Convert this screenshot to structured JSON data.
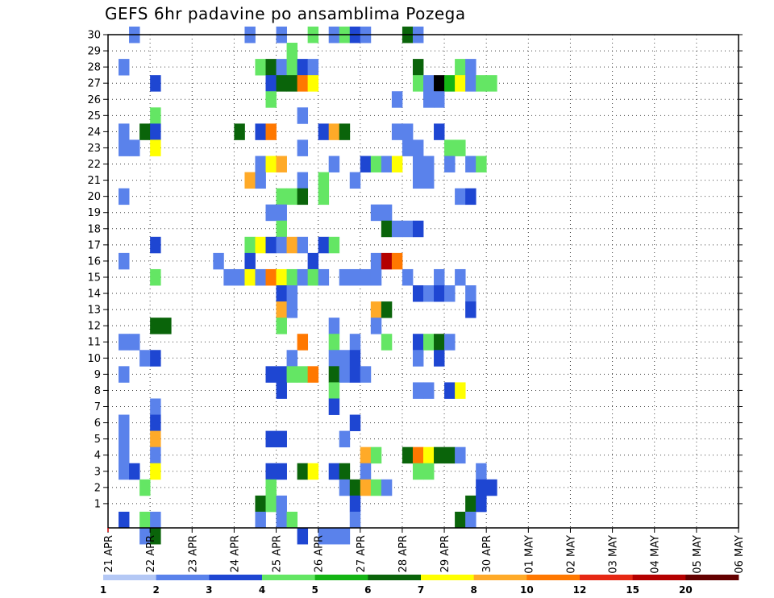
{
  "chart_data": {
    "type": "heatmap",
    "title": "GEFS 6hr padavine po ansamblima Pozega",
    "xlabel": "",
    "ylabel": "",
    "y_ticks": [
      1,
      2,
      3,
      4,
      5,
      6,
      7,
      8,
      9,
      10,
      11,
      12,
      13,
      14,
      15,
      16,
      17,
      18,
      19,
      20,
      21,
      22,
      23,
      24,
      25,
      26,
      27,
      28,
      29,
      30
    ],
    "x_ticks": [
      "21 APR",
      "22 APR",
      "23 APR",
      "24 APR",
      "25 APR",
      "26 APR",
      "27 APR",
      "28 APR",
      "29 APR",
      "30 APR",
      "01 MAY",
      "02 MAY",
      "03 MAY",
      "04 MAY",
      "05 MAY",
      "06 MAY"
    ],
    "x_steps_per_day": 4,
    "x_steps_total": 60,
    "grid": true,
    "legend": {
      "placement": "bottom",
      "labels": [
        "1",
        "2",
        "3",
        "4",
        "5",
        "6",
        "7",
        "8",
        "10",
        "12",
        "15",
        "20"
      ],
      "colors": [
        "#b4c8f5",
        "#5a82eb",
        "#1e46d2",
        "#64e664",
        "#14b414",
        "#0a640a",
        "#ffff00",
        "#ffaa28",
        "#ff7800",
        "#e62814",
        "#b40000",
        "#640000"
      ]
    },
    "cells": [
      [
        2,
        30,
        1
      ],
      [
        13,
        30,
        1
      ],
      [
        16,
        30,
        1
      ],
      [
        19,
        30,
        3
      ],
      [
        21,
        30,
        1
      ],
      [
        22,
        30,
        3
      ],
      [
        23,
        30,
        2
      ],
      [
        24,
        30,
        1
      ],
      [
        28,
        30,
        5
      ],
      [
        29,
        30,
        1
      ],
      [
        17,
        29,
        3
      ],
      [
        1,
        28,
        1
      ],
      [
        14,
        28,
        3
      ],
      [
        15,
        28,
        5
      ],
      [
        16,
        28,
        1
      ],
      [
        17,
        28,
        3
      ],
      [
        18,
        28,
        2
      ],
      [
        19,
        28,
        1
      ],
      [
        29,
        28,
        5
      ],
      [
        33,
        28,
        3
      ],
      [
        34,
        28,
        1
      ],
      [
        4,
        27,
        2
      ],
      [
        15,
        27,
        2
      ],
      [
        16,
        27,
        5
      ],
      [
        17,
        27,
        5
      ],
      [
        18,
        27,
        8
      ],
      [
        19,
        27,
        6
      ],
      [
        29,
        27,
        3
      ],
      [
        30,
        27,
        1
      ],
      [
        31,
        27,
        12
      ],
      [
        32,
        27,
        4
      ],
      [
        33,
        27,
        6
      ],
      [
        34,
        27,
        1
      ],
      [
        35,
        27,
        3
      ],
      [
        36,
        27,
        3
      ],
      [
        15,
        26,
        3
      ],
      [
        27,
        26,
        1
      ],
      [
        30,
        26,
        1
      ],
      [
        31,
        26,
        1
      ],
      [
        4,
        25,
        3
      ],
      [
        18,
        25,
        1
      ],
      [
        1,
        24,
        1
      ],
      [
        3,
        24,
        5
      ],
      [
        4,
        24,
        2
      ],
      [
        12,
        24,
        5
      ],
      [
        14,
        24,
        2
      ],
      [
        15,
        24,
        8
      ],
      [
        20,
        24,
        2
      ],
      [
        21,
        24,
        7
      ],
      [
        22,
        24,
        5
      ],
      [
        27,
        24,
        1
      ],
      [
        28,
        24,
        1
      ],
      [
        31,
        24,
        2
      ],
      [
        1,
        23,
        1
      ],
      [
        2,
        23,
        1
      ],
      [
        4,
        23,
        6
      ],
      [
        18,
        23,
        1
      ],
      [
        28,
        23,
        1
      ],
      [
        29,
        23,
        1
      ],
      [
        32,
        23,
        3
      ],
      [
        33,
        23,
        3
      ],
      [
        14,
        22,
        1
      ],
      [
        15,
        22,
        6
      ],
      [
        16,
        22,
        7
      ],
      [
        21,
        22,
        1
      ],
      [
        24,
        22,
        2
      ],
      [
        25,
        22,
        3
      ],
      [
        26,
        22,
        1
      ],
      [
        27,
        22,
        6
      ],
      [
        29,
        22,
        1
      ],
      [
        30,
        22,
        1
      ],
      [
        32,
        22,
        1
      ],
      [
        34,
        22,
        1
      ],
      [
        35,
        22,
        3
      ],
      [
        13,
        21,
        7
      ],
      [
        14,
        21,
        1
      ],
      [
        18,
        21,
        1
      ],
      [
        20,
        21,
        3
      ],
      [
        23,
        21,
        1
      ],
      [
        29,
        21,
        1
      ],
      [
        30,
        21,
        1
      ],
      [
        1,
        20,
        1
      ],
      [
        16,
        20,
        3
      ],
      [
        17,
        20,
        3
      ],
      [
        18,
        20,
        5
      ],
      [
        20,
        20,
        3
      ],
      [
        33,
        20,
        1
      ],
      [
        34,
        20,
        2
      ],
      [
        15,
        19,
        1
      ],
      [
        16,
        19,
        1
      ],
      [
        25,
        19,
        1
      ],
      [
        26,
        19,
        1
      ],
      [
        16,
        18,
        3
      ],
      [
        26,
        18,
        5
      ],
      [
        27,
        18,
        1
      ],
      [
        28,
        18,
        1
      ],
      [
        29,
        18,
        2
      ],
      [
        4,
        17,
        2
      ],
      [
        13,
        17,
        3
      ],
      [
        14,
        17,
        6
      ],
      [
        15,
        17,
        2
      ],
      [
        16,
        17,
        1
      ],
      [
        17,
        17,
        7
      ],
      [
        18,
        17,
        1
      ],
      [
        20,
        17,
        2
      ],
      [
        21,
        17,
        3
      ],
      [
        1,
        16,
        1
      ],
      [
        10,
        16,
        1
      ],
      [
        13,
        16,
        2
      ],
      [
        19,
        16,
        2
      ],
      [
        25,
        16,
        1
      ],
      [
        26,
        16,
        10
      ],
      [
        27,
        16,
        8
      ],
      [
        4,
        15,
        3
      ],
      [
        11,
        15,
        1
      ],
      [
        12,
        15,
        1
      ],
      [
        13,
        15,
        6
      ],
      [
        14,
        15,
        1
      ],
      [
        15,
        15,
        8
      ],
      [
        16,
        15,
        6
      ],
      [
        17,
        15,
        3
      ],
      [
        18,
        15,
        1
      ],
      [
        19,
        15,
        3
      ],
      [
        20,
        15,
        1
      ],
      [
        22,
        15,
        1
      ],
      [
        23,
        15,
        1
      ],
      [
        24,
        15,
        1
      ],
      [
        25,
        15,
        1
      ],
      [
        28,
        15,
        1
      ],
      [
        31,
        15,
        1
      ],
      [
        33,
        15,
        1
      ],
      [
        16,
        14,
        2
      ],
      [
        17,
        14,
        1
      ],
      [
        29,
        14,
        2
      ],
      [
        30,
        14,
        1
      ],
      [
        31,
        14,
        2
      ],
      [
        32,
        14,
        1
      ],
      [
        34,
        14,
        1
      ],
      [
        16,
        13,
        7
      ],
      [
        17,
        13,
        1
      ],
      [
        25,
        13,
        7
      ],
      [
        26,
        13,
        5
      ],
      [
        34,
        13,
        2
      ],
      [
        4,
        12,
        5
      ],
      [
        5,
        12,
        5
      ],
      [
        16,
        12,
        3
      ],
      [
        21,
        12,
        1
      ],
      [
        25,
        12,
        1
      ],
      [
        1,
        11,
        1
      ],
      [
        2,
        11,
        1
      ],
      [
        18,
        11,
        8
      ],
      [
        21,
        11,
        3
      ],
      [
        23,
        11,
        1
      ],
      [
        26,
        11,
        3
      ],
      [
        29,
        11,
        2
      ],
      [
        30,
        11,
        3
      ],
      [
        31,
        11,
        5
      ],
      [
        32,
        11,
        1
      ],
      [
        3,
        10,
        1
      ],
      [
        4,
        10,
        2
      ],
      [
        17,
        10,
        1
      ],
      [
        21,
        10,
        1
      ],
      [
        22,
        10,
        1
      ],
      [
        23,
        10,
        2
      ],
      [
        29,
        10,
        1
      ],
      [
        31,
        10,
        2
      ],
      [
        1,
        9,
        1
      ],
      [
        15,
        9,
        2
      ],
      [
        16,
        9,
        2
      ],
      [
        17,
        9,
        3
      ],
      [
        18,
        9,
        3
      ],
      [
        19,
        9,
        8
      ],
      [
        21,
        9,
        5
      ],
      [
        22,
        9,
        1
      ],
      [
        23,
        9,
        2
      ],
      [
        24,
        9,
        1
      ],
      [
        16,
        8,
        2
      ],
      [
        21,
        8,
        3
      ],
      [
        29,
        8,
        1
      ],
      [
        30,
        8,
        1
      ],
      [
        32,
        8,
        2
      ],
      [
        33,
        8,
        6
      ],
      [
        4,
        7,
        1
      ],
      [
        21,
        7,
        2
      ],
      [
        1,
        6,
        1
      ],
      [
        4,
        6,
        2
      ],
      [
        23,
        6,
        2
      ],
      [
        1,
        5,
        1
      ],
      [
        4,
        5,
        7
      ],
      [
        15,
        5,
        2
      ],
      [
        16,
        5,
        2
      ],
      [
        22,
        5,
        1
      ],
      [
        1,
        4,
        1
      ],
      [
        4,
        4,
        1
      ],
      [
        24,
        4,
        7
      ],
      [
        25,
        4,
        3
      ],
      [
        28,
        4,
        5
      ],
      [
        29,
        4,
        8
      ],
      [
        30,
        4,
        6
      ],
      [
        31,
        4,
        5
      ],
      [
        32,
        4,
        5
      ],
      [
        33,
        4,
        1
      ],
      [
        1,
        3,
        1
      ],
      [
        2,
        3,
        2
      ],
      [
        4,
        3,
        6
      ],
      [
        15,
        3,
        2
      ],
      [
        16,
        3,
        2
      ],
      [
        18,
        3,
        5
      ],
      [
        19,
        3,
        6
      ],
      [
        21,
        3,
        2
      ],
      [
        22,
        3,
        5
      ],
      [
        24,
        3,
        1
      ],
      [
        29,
        3,
        3
      ],
      [
        30,
        3,
        3
      ],
      [
        35,
        3,
        1
      ],
      [
        3,
        2,
        3
      ],
      [
        15,
        2,
        3
      ],
      [
        22,
        2,
        1
      ],
      [
        23,
        2,
        5
      ],
      [
        24,
        2,
        7
      ],
      [
        25,
        2,
        3
      ],
      [
        26,
        2,
        1
      ],
      [
        35,
        2,
        2
      ],
      [
        36,
        2,
        2
      ],
      [
        14,
        1,
        5
      ],
      [
        15,
        1,
        3
      ],
      [
        16,
        1,
        1
      ],
      [
        23,
        1,
        2
      ],
      [
        34,
        1,
        5
      ],
      [
        35,
        1,
        2
      ],
      [
        1,
        0,
        2
      ],
      [
        3,
        0,
        3
      ],
      [
        4,
        0,
        1
      ],
      [
        14,
        0,
        1
      ],
      [
        16,
        0,
        1
      ],
      [
        17,
        0,
        3
      ],
      [
        23,
        0,
        1
      ],
      [
        33,
        0,
        5
      ],
      [
        34,
        0,
        1
      ],
      [
        3,
        -1,
        1
      ],
      [
        4,
        -1,
        5
      ],
      [
        18,
        -1,
        2
      ],
      [
        20,
        -1,
        1
      ],
      [
        21,
        -1,
        1
      ],
      [
        22,
        -1,
        1
      ]
    ]
  }
}
